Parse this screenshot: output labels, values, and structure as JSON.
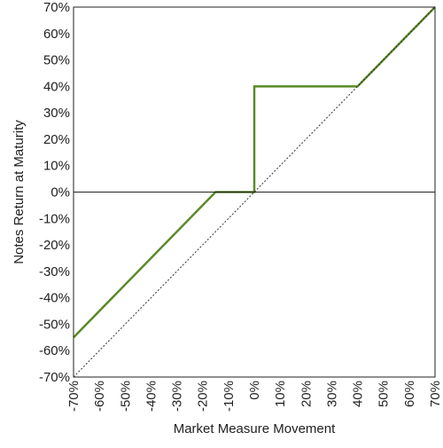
{
  "chart_data": {
    "type": "line",
    "title": "",
    "xlabel": "Market Measure Movement",
    "ylabel": "Notes Return at Maturity",
    "xlim": [
      -70,
      70
    ],
    "ylim": [
      -70,
      70
    ],
    "x_ticks": [
      "-70%",
      "-60%",
      "-50%",
      "-40%",
      "-30%",
      "-20%",
      "-10%",
      "0%",
      "10%",
      "20%",
      "30%",
      "40%",
      "50%",
      "60%",
      "70%"
    ],
    "y_ticks": [
      "70%",
      "60%",
      "50%",
      "40%",
      "30%",
      "20%",
      "10%",
      "0%",
      "-10%",
      "-20%",
      "-30%",
      "-40%",
      "-50%",
      "-60%",
      "-70%"
    ],
    "grid": false,
    "series": [
      {
        "style": "solid",
        "color": "#5a8a2a",
        "points": [
          [
            -70,
            -55
          ],
          [
            -15,
            0
          ],
          [
            0,
            0
          ],
          [
            0,
            40
          ],
          [
            40,
            40
          ],
          [
            70,
            70
          ]
        ]
      },
      {
        "style": "dotted",
        "color": "#333333",
        "points": [
          [
            -70,
            -70
          ],
          [
            70,
            70
          ]
        ]
      }
    ],
    "zero_line": true
  }
}
